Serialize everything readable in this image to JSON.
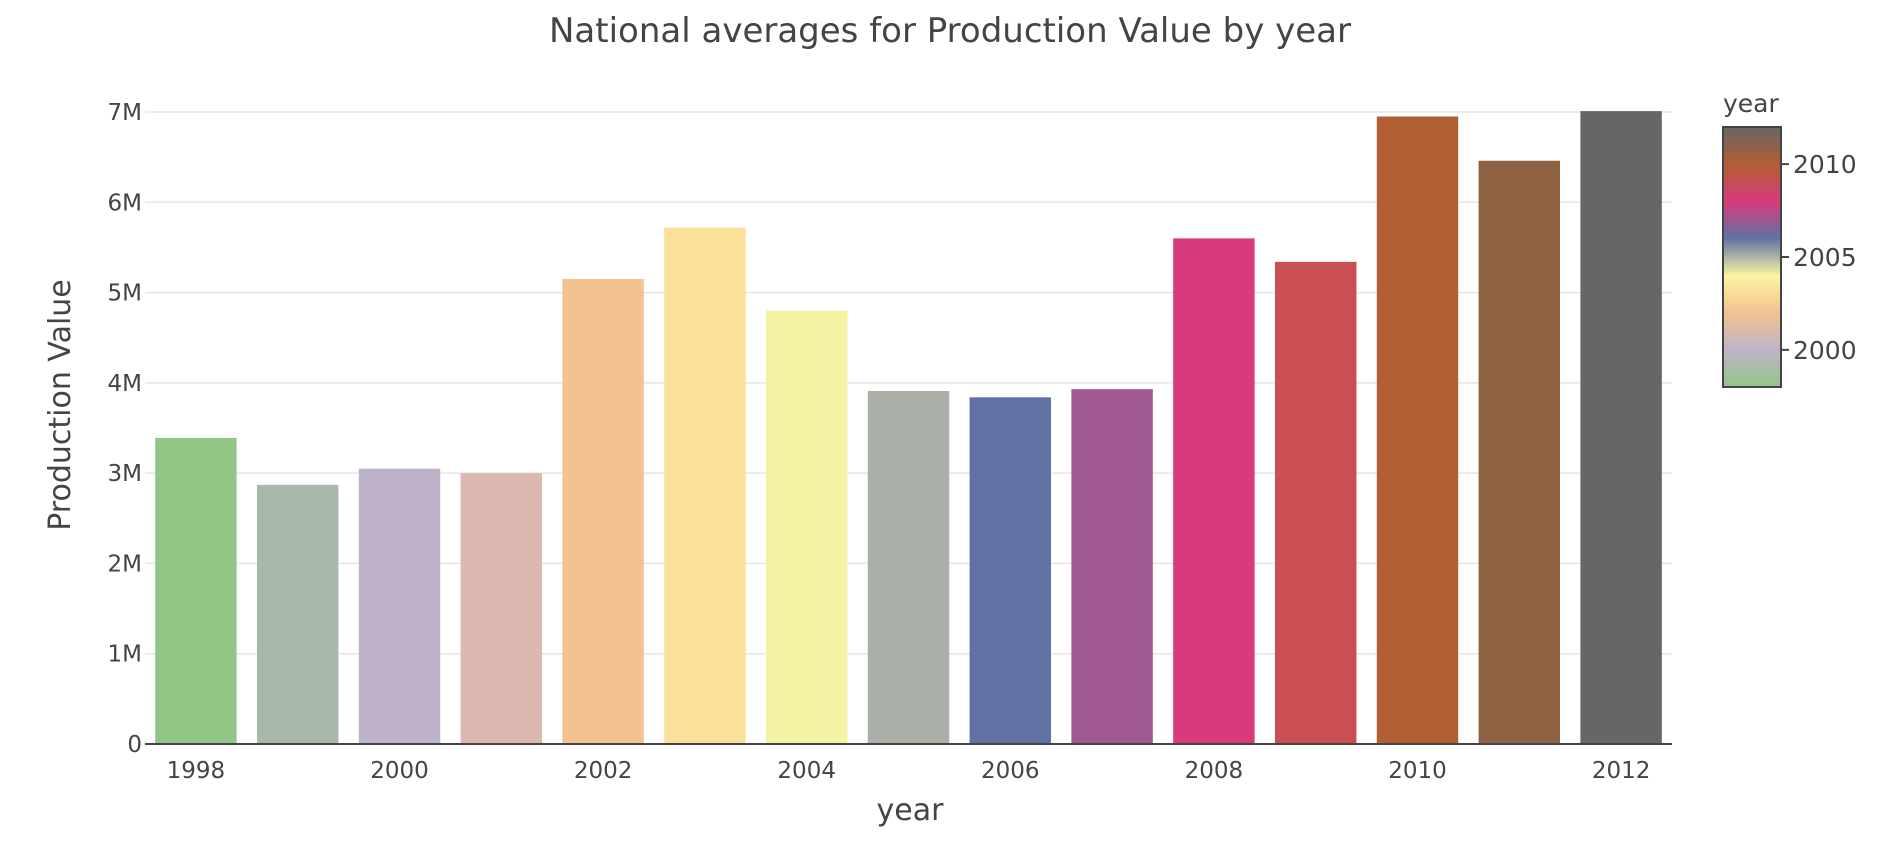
{
  "chart_data": {
    "type": "bar",
    "title": "National averages for Production Value by year",
    "xlabel": "year",
    "ylabel": "Production Value",
    "x": [
      1998,
      1999,
      2000,
      2001,
      2002,
      2003,
      2004,
      2005,
      2006,
      2007,
      2008,
      2009,
      2010,
      2011,
      2012
    ],
    "values": [
      3390000,
      2870000,
      3050000,
      3000000,
      5150000,
      5720000,
      4800000,
      3910000,
      3840000,
      3930000,
      5600000,
      5340000,
      6950000,
      6460000,
      7010000
    ],
    "bar_colors": [
      "#91c686",
      "#a8b9a9",
      "#bfb3c9",
      "#dcb8b0",
      "#f4c291",
      "#fbe099",
      "#f5f2a3",
      "#aab0a7",
      "#6072a5",
      "#a05891",
      "#d93a7b",
      "#c94f52",
      "#b05f32",
      "#8f6243",
      "#666666"
    ],
    "ylim": [
      0,
      7000000
    ],
    "y_ticks": [
      0,
      1000000,
      2000000,
      3000000,
      4000000,
      5000000,
      6000000,
      7000000
    ],
    "y_tick_labels": [
      "0",
      "1M",
      "2M",
      "3M",
      "4M",
      "5M",
      "6M",
      "7M"
    ],
    "x_ticks": [
      1998,
      2000,
      2002,
      2004,
      2006,
      2008,
      2010,
      2012
    ],
    "x_tick_labels": [
      "1998",
      "2000",
      "2002",
      "2004",
      "2006",
      "2008",
      "2010",
      "2012"
    ],
    "grid": true,
    "legend": "none",
    "colorbar": {
      "title": "year",
      "placement": "right",
      "range": [
        1998,
        2012
      ],
      "ticks": [
        2000,
        2005,
        2010
      ],
      "tick_labels": [
        "2000",
        "2005",
        "2010"
      ],
      "colorscale": [
        "#91c686",
        "#bfb3c9",
        "#f4c291",
        "#faf5a3",
        "#6072a5",
        "#d93a7b",
        "#b05f32",
        "#666666"
      ]
    }
  }
}
